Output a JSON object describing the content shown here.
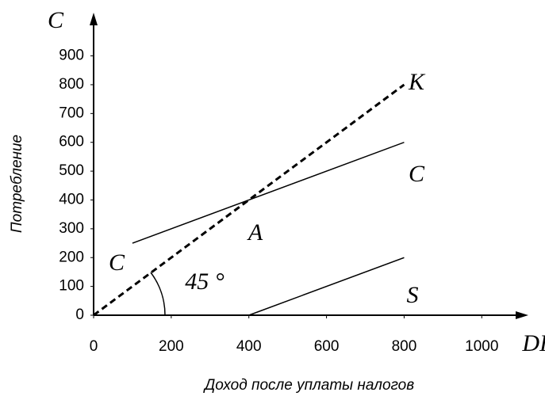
{
  "chart_data": {
    "type": "line",
    "y_label": "Потребление",
    "x_label": "Доход после уплаты налогов",
    "y_axis_name": "C",
    "x_axis_name": "DI",
    "xlim": [
      0,
      1120
    ],
    "ylim": [
      0,
      1050
    ],
    "xticks": [
      0,
      200,
      400,
      600,
      800,
      1000
    ],
    "yticks": [
      0,
      100,
      200,
      300,
      400,
      500,
      600,
      700,
      800,
      900
    ],
    "grid": false,
    "series": [
      {
        "name": "K",
        "color": "#000000",
        "dashed": true,
        "x": [
          0,
          800
        ],
        "values": [
          0,
          800
        ]
      },
      {
        "name": "C",
        "color": "#000000",
        "dashed": false,
        "x": [
          100,
          800
        ],
        "values": [
          250,
          600
        ]
      },
      {
        "name": "S",
        "color": "#000000",
        "dashed": false,
        "x": [
          400,
          800
        ],
        "values": [
          0,
          200
        ]
      }
    ],
    "annotations": [
      "C",
      "A",
      "45 °"
    ]
  }
}
